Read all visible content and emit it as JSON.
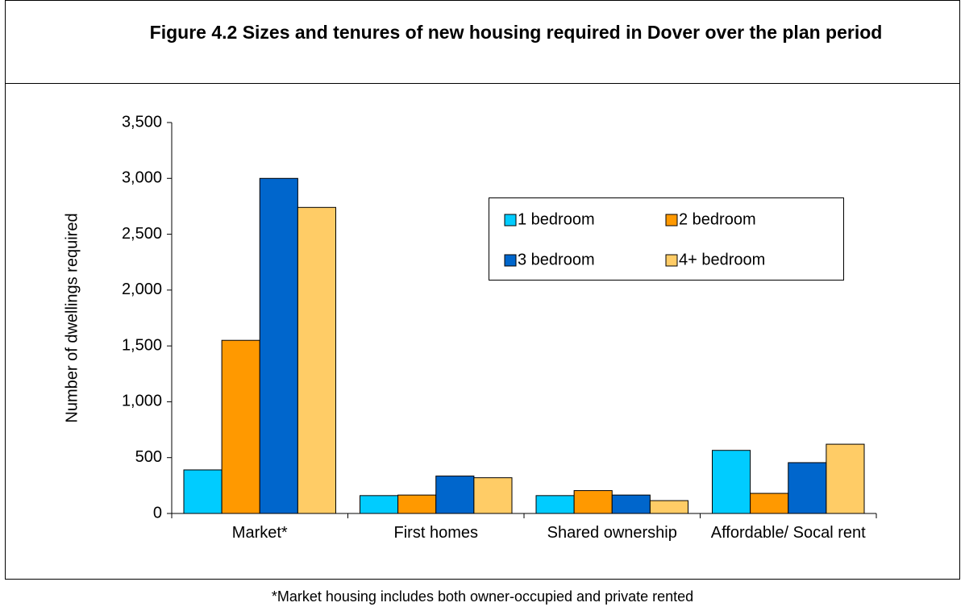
{
  "chart_data": {
    "type": "bar",
    "title": "Figure 4.2 Sizes and tenures of new housing required in Dover over the plan period",
    "y_label": "Number of dwellings required",
    "categories": [
      "Market*",
      "First homes",
      "Shared ownership",
      "Affordable/ Socal rent"
    ],
    "series": [
      {
        "name": "1 bedroom",
        "color": "#00ccff",
        "values": [
          390,
          160,
          160,
          565
        ]
      },
      {
        "name": "2 bedroom",
        "color": "#ff9900",
        "values": [
          1550,
          165,
          205,
          180
        ]
      },
      {
        "name": "3 bedroom",
        "color": "#0066cc",
        "values": [
          3000,
          335,
          165,
          455
        ]
      },
      {
        "name": "4+ bedroom",
        "color": "#ffcc66",
        "values": [
          2740,
          320,
          115,
          620
        ]
      }
    ],
    "ylim": [
      0,
      3500
    ],
    "yticks": [
      0,
      500,
      {
        "value": 1000,
        "label": "1,000"
      },
      {
        "value": 1500,
        "label": "1,500"
      },
      {
        "value": 2000,
        "label": "2,000"
      },
      {
        "value": 2500,
        "label": "2,500"
      },
      {
        "value": 3000,
        "label": "3,000"
      },
      {
        "value": 3500,
        "label": "3,500"
      }
    ],
    "grid": false,
    "legend": "upper right",
    "footnote": "*Market housing includes both owner-occupied and private rented"
  }
}
